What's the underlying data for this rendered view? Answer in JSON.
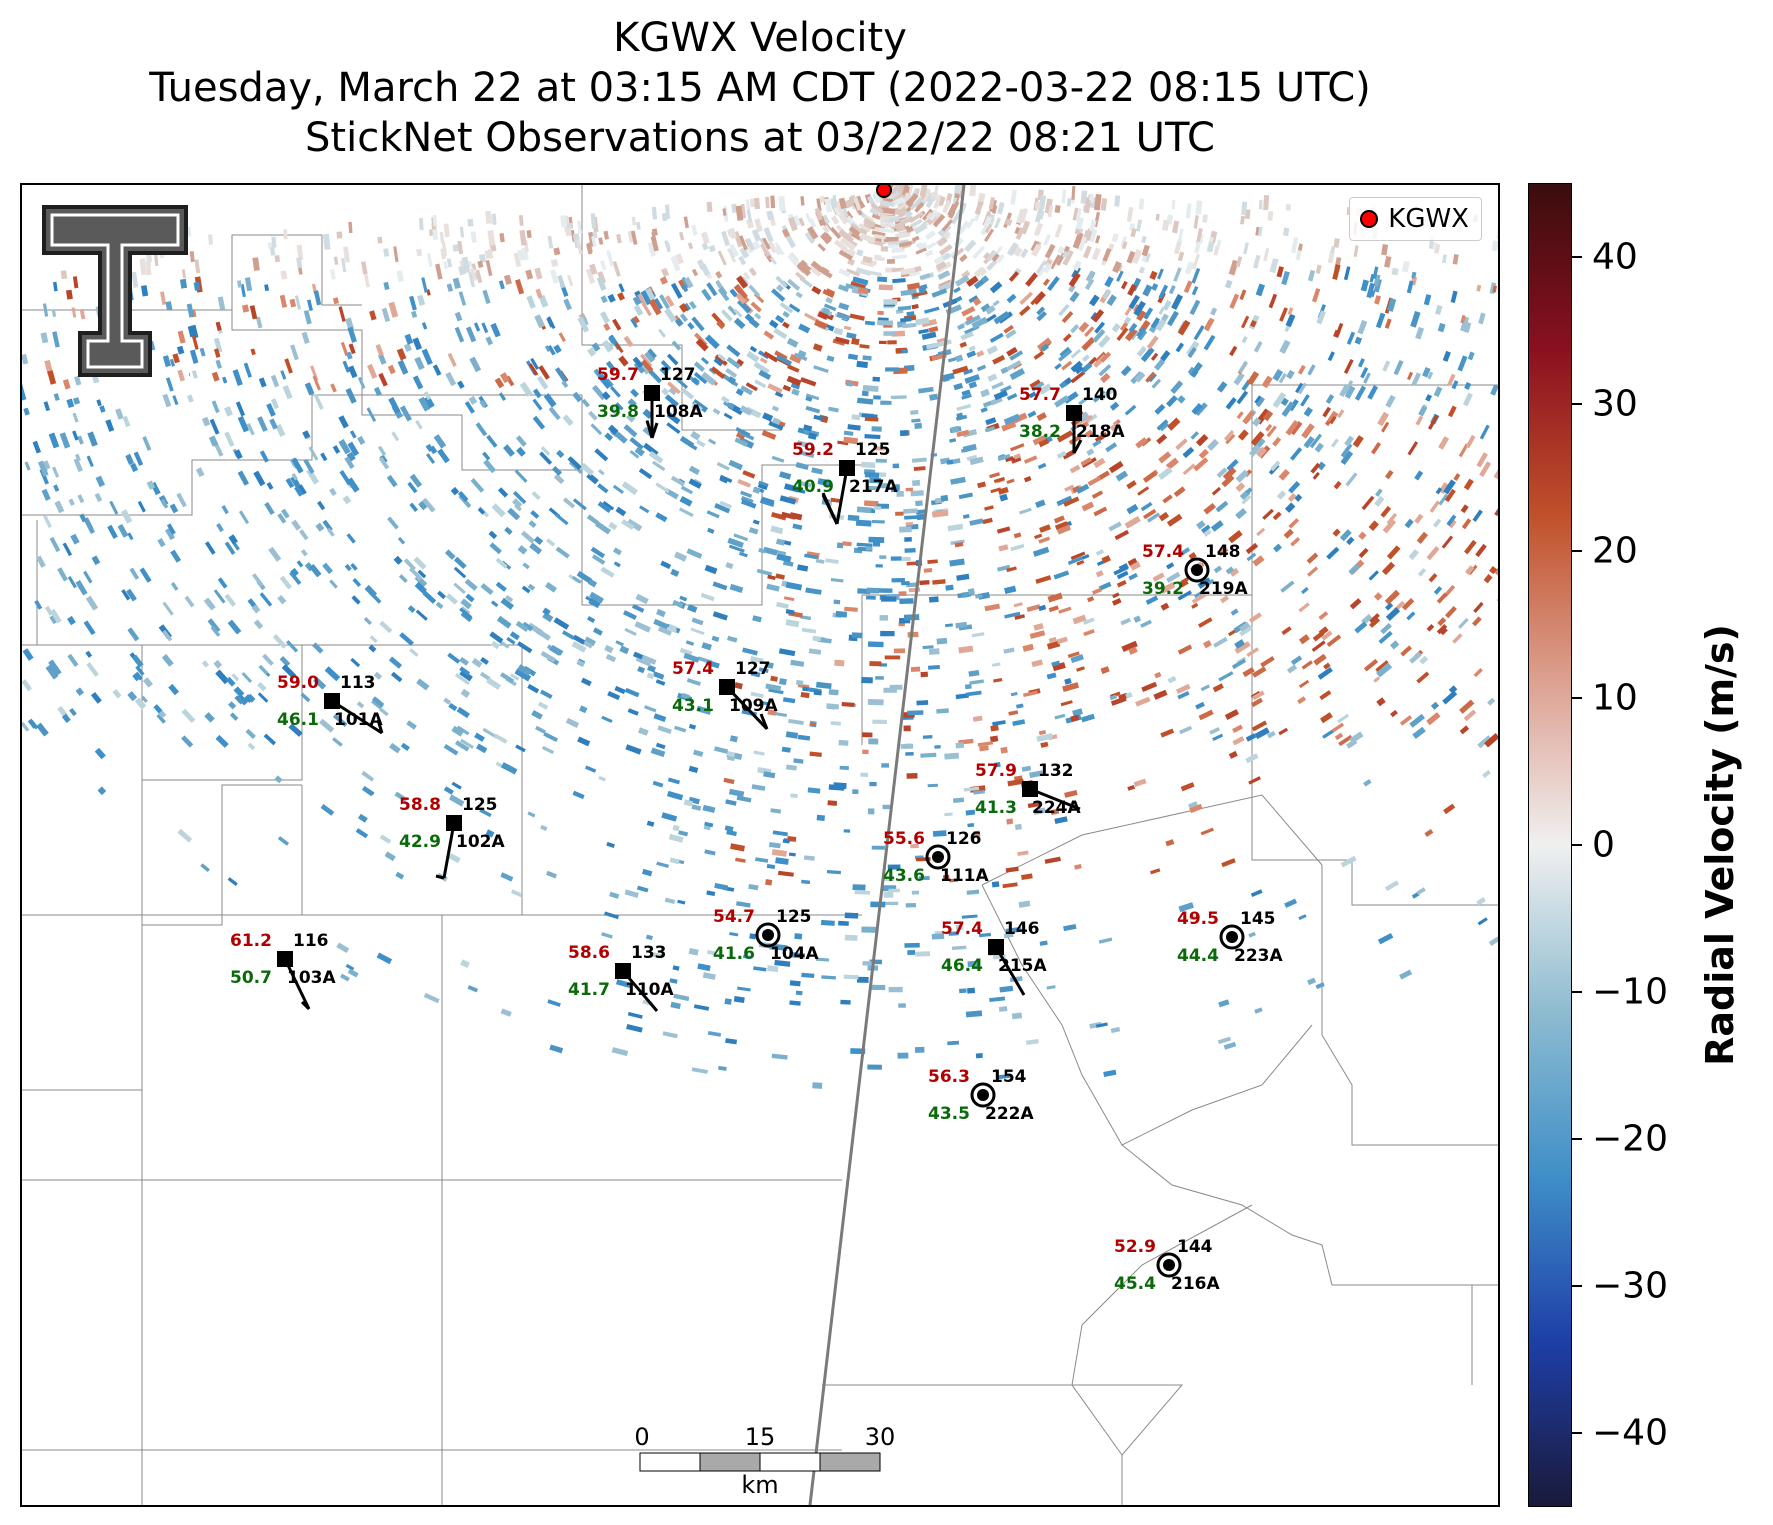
{
  "title": {
    "line1": "KGWX Velocity",
    "line2": "Tuesday, March 22 at 03:15 AM CDT (2022-03-22 08:15 UTC)",
    "line3": "StickNet Observations at 03/22/22 08:21 UTC"
  },
  "legend": {
    "label": "KGWX",
    "marker_color": "#ff0000"
  },
  "logo": {
    "text": "T",
    "mark": "®"
  },
  "colorbar": {
    "label": "Radial Velocity (m/s)",
    "ticks": [
      "40",
      "30",
      "20",
      "10",
      "0",
      "−10",
      "−20",
      "−30",
      "−40"
    ],
    "range": [
      -45,
      45
    ],
    "colors": [
      "#1a1a3a",
      "#1e3fa8",
      "#3f8fc8",
      "#8fbcd0",
      "#f0f0f0",
      "#dca090",
      "#c0502a",
      "#8a1020",
      "#3a0d0d"
    ]
  },
  "scale_bar": {
    "ticks": [
      "0",
      "15",
      "30"
    ],
    "unit": "km"
  },
  "stations": [
    {
      "id": "108A",
      "temp": "59.7",
      "dew": "39.8",
      "dir": "127",
      "type": "square"
    },
    {
      "id": "218A",
      "temp": "57.7",
      "dew": "38.2",
      "dir": "140",
      "type": "square"
    },
    {
      "id": "217A",
      "temp": "59.2",
      "dew": "40.9",
      "dir": "125",
      "type": "square"
    },
    {
      "id": "219A",
      "temp": "57.4",
      "dew": "39.2",
      "dir": "148",
      "type": "circle"
    },
    {
      "id": "101A",
      "temp": "59.0",
      "dew": "46.1",
      "dir": "113",
      "type": "square"
    },
    {
      "id": "109A",
      "temp": "57.4",
      "dew": "43.1",
      "dir": "127",
      "type": "square"
    },
    {
      "id": "224A",
      "temp": "57.9",
      "dew": "41.3",
      "dir": "132",
      "type": "square"
    },
    {
      "id": "102A",
      "temp": "58.8",
      "dew": "42.9",
      "dir": "125",
      "type": "square"
    },
    {
      "id": "111A",
      "temp": "55.6",
      "dew": "43.6",
      "dir": "126",
      "type": "circle"
    },
    {
      "id": "104A",
      "temp": "54.7",
      "dew": "41.6",
      "dir": "125",
      "type": "circle"
    },
    {
      "id": "223A",
      "temp": "49.5",
      "dew": "44.4",
      "dir": "145",
      "type": "circle"
    },
    {
      "id": "215A",
      "temp": "57.4",
      "dew": "46.4",
      "dir": "146",
      "type": "square"
    },
    {
      "id": "103A",
      "temp": "61.2",
      "dew": "50.7",
      "dir": "116",
      "type": "square"
    },
    {
      "id": "110A",
      "temp": "58.6",
      "dew": "41.7",
      "dir": "133",
      "type": "square"
    },
    {
      "id": "222A",
      "temp": "56.3",
      "dew": "43.5",
      "dir": "154",
      "type": "circle"
    },
    {
      "id": "216A",
      "temp": "52.9",
      "dew": "45.4",
      "dir": "144",
      "type": "circle"
    }
  ]
}
